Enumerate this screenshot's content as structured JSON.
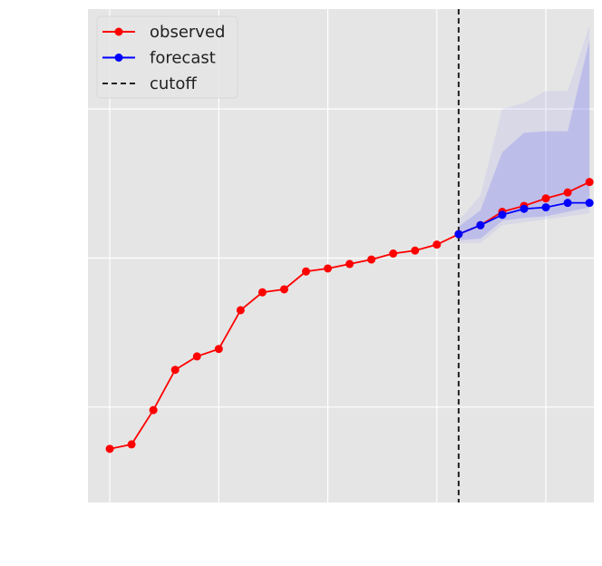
{
  "chart_data": {
    "type": "line",
    "title": "",
    "xlabel": "",
    "ylabel": "",
    "xlim": [
      -1,
      22.2
    ],
    "ylim": [
      -3.2,
      13.35
    ],
    "grid": true,
    "x_ticks": [
      0,
      5,
      10,
      15,
      20
    ],
    "y_ticks": [
      0,
      5,
      10
    ],
    "legend": {
      "position": "top-left",
      "entries": [
        {
          "label": "observed",
          "color": "#ff0000",
          "style": "line-marker"
        },
        {
          "label": "forecast",
          "color": "#0000ff",
          "style": "line-marker"
        },
        {
          "label": "cutoff",
          "color": "#222222",
          "style": "dashed"
        }
      ]
    },
    "series": [
      {
        "name": "observed",
        "color": "#ff0000",
        "x": [
          0,
          1,
          2,
          3,
          4,
          5,
          6,
          7,
          8,
          9,
          10,
          11,
          12,
          13,
          14,
          15,
          16,
          17,
          18,
          19,
          20,
          21,
          22
        ],
        "y": [
          -1.4,
          -1.25,
          -0.1,
          1.25,
          1.7,
          1.95,
          3.25,
          3.85,
          3.95,
          4.55,
          4.65,
          4.8,
          4.95,
          5.15,
          5.25,
          5.45,
          5.8,
          6.1,
          6.55,
          6.75,
          7.0,
          7.2,
          7.55
        ]
      },
      {
        "name": "forecast",
        "color": "#0000ff",
        "x": [
          16,
          17,
          18,
          19,
          20,
          21,
          22
        ],
        "y": [
          5.8,
          6.1,
          6.45,
          6.65,
          6.7,
          6.85,
          6.85
        ]
      }
    ],
    "cutoff": {
      "name": "cutoff",
      "x": 16
    },
    "intervals": [
      {
        "color": "#8c8cf0",
        "opacity": 0.15,
        "x": [
          16,
          17,
          18,
          19,
          20,
          21,
          22
        ],
        "lower": [
          5.5,
          5.5,
          6.1,
          6.2,
          6.3,
          6.4,
          6.5
        ],
        "upper": [
          6.25,
          7.1,
          10.0,
          10.2,
          10.6,
          10.6,
          12.8
        ]
      },
      {
        "color": "#8c8cf0",
        "opacity": 0.35,
        "x": [
          16,
          17,
          18,
          19,
          20,
          21,
          22
        ],
        "lower": [
          5.6,
          5.65,
          6.25,
          6.35,
          6.4,
          6.55,
          6.7
        ],
        "upper": [
          6.05,
          6.6,
          8.55,
          9.2,
          9.25,
          9.25,
          12.3
        ]
      }
    ]
  }
}
